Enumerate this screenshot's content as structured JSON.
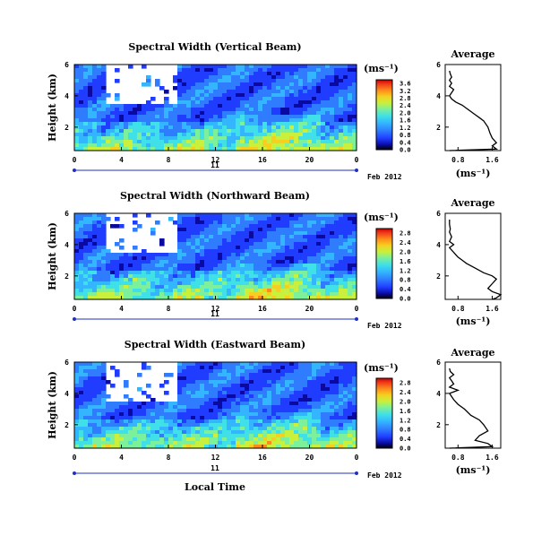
{
  "figure": {
    "xlabel": "Local Time",
    "date_label": "Feb 2012",
    "day_label": "11"
  },
  "chart_data": [
    {
      "type": "heatmap",
      "title": "Spectral Width (Vertical Beam)",
      "xlabel": "Local Time",
      "ylabel": "Height (km)",
      "x_ticks": [
        "0",
        "4",
        "8",
        "12",
        "16",
        "20",
        "0"
      ],
      "x_range": [
        0,
        24
      ],
      "y_ticks": [
        "2",
        "4",
        "6"
      ],
      "y_range": [
        0.5,
        6
      ],
      "colorbar": {
        "label": "(ms⁻¹)",
        "ticks": [
          "0.0",
          "0.4",
          "0.8",
          "1.2",
          "1.6",
          "2.0",
          "2.4",
          "2.8",
          "3.2",
          "3.6"
        ],
        "range": [
          0,
          3.8
        ]
      },
      "profile": {
        "title": "Average",
        "xlabel": "(ms⁻¹)",
        "x_ticks": [
          "0.8",
          "1.6"
        ],
        "x_range": [
          0.5,
          1.8
        ],
        "y_ticks": [
          "2",
          "4",
          "6"
        ],
        "y_range": [
          0.5,
          6
        ],
        "heights": [
          0.5,
          0.6,
          0.8,
          1.0,
          1.3,
          1.6,
          2.0,
          2.4,
          2.6,
          2.8,
          3.0,
          3.2,
          3.4,
          3.6,
          3.8,
          4.0,
          4.2,
          4.4,
          4.6,
          4.8,
          5.0,
          5.2,
          5.4,
          5.6
        ],
        "values": [
          0.6,
          1.7,
          1.6,
          1.7,
          1.6,
          1.55,
          1.5,
          1.4,
          1.3,
          1.2,
          1.1,
          1.0,
          0.9,
          0.75,
          0.65,
          0.6,
          0.65,
          0.7,
          0.6,
          0.65,
          0.6,
          0.65,
          0.62,
          0.6
        ]
      }
    },
    {
      "type": "heatmap",
      "title": "Spectral Width (Northward Beam)",
      "xlabel": "Local Time",
      "ylabel": "Height (km)",
      "x_ticks": [
        "0",
        "4",
        "8",
        "12",
        "16",
        "20",
        "0"
      ],
      "x_range": [
        0,
        24
      ],
      "y_ticks": [
        "2",
        "4",
        "6"
      ],
      "y_range": [
        0.5,
        6
      ],
      "colorbar": {
        "label": "(ms⁻¹)",
        "ticks": [
          "0.0",
          "0.4",
          "0.8",
          "1.2",
          "1.6",
          "2.0",
          "2.4",
          "2.8"
        ],
        "range": [
          0,
          3.0
        ]
      },
      "profile": {
        "title": "Average",
        "xlabel": "(ms⁻¹)",
        "x_ticks": [
          "0.8",
          "1.6"
        ],
        "x_range": [
          0.5,
          1.8
        ],
        "y_ticks": [
          "2",
          "4",
          "6"
        ],
        "y_range": [
          0.5,
          6
        ],
        "heights": [
          0.5,
          0.6,
          0.8,
          1.0,
          1.2,
          1.5,
          1.8,
          2.0,
          2.2,
          2.5,
          2.8,
          3.0,
          3.2,
          3.5,
          3.8,
          4.0,
          4.2,
          4.5,
          4.8,
          5.0,
          5.3,
          5.6
        ],
        "values": [
          1.6,
          1.7,
          1.8,
          1.6,
          1.5,
          1.6,
          1.7,
          1.6,
          1.4,
          1.2,
          1.0,
          0.9,
          0.8,
          0.7,
          0.6,
          0.7,
          0.6,
          0.65,
          0.6,
          0.62,
          0.6,
          0.6
        ]
      }
    },
    {
      "type": "heatmap",
      "title": "Spectral Width (Eastward Beam)",
      "xlabel": "Local Time",
      "ylabel": "Height (km)",
      "x_ticks": [
        "0",
        "4",
        "8",
        "12",
        "16",
        "20",
        "0"
      ],
      "x_range": [
        0,
        24
      ],
      "y_ticks": [
        "2",
        "4",
        "6"
      ],
      "y_range": [
        0.5,
        6
      ],
      "colorbar": {
        "label": "(ms⁻¹)",
        "ticks": [
          "0.0",
          "0.4",
          "0.8",
          "1.2",
          "1.6",
          "2.0",
          "2.4",
          "2.8"
        ],
        "range": [
          0,
          3.0
        ]
      },
      "profile": {
        "title": "Average",
        "xlabel": "(ms⁻¹)",
        "x_ticks": [
          "0.8",
          "1.6"
        ],
        "x_range": [
          0.5,
          1.8
        ],
        "y_ticks": [
          "2",
          "4",
          "6"
        ],
        "y_range": [
          0.5,
          6
        ],
        "heights": [
          0.5,
          0.6,
          0.8,
          1.0,
          1.3,
          1.6,
          2.0,
          2.3,
          2.6,
          3.0,
          3.3,
          3.6,
          4.0,
          4.2,
          4.4,
          4.6,
          4.8,
          5.0,
          5.2,
          5.4,
          5.6
        ],
        "values": [
          0.6,
          1.6,
          1.5,
          1.2,
          1.3,
          1.5,
          1.4,
          1.3,
          1.1,
          0.95,
          0.8,
          0.7,
          0.6,
          0.8,
          0.6,
          0.7,
          0.65,
          0.6,
          0.7,
          0.62,
          0.6
        ]
      }
    }
  ],
  "palette": [
    "#000000",
    "#0a0aa0",
    "#1f3cff",
    "#2f7cff",
    "#33b5ff",
    "#40e0e8",
    "#7cf09a",
    "#c8f03c",
    "#f5d020",
    "#ff8c1a",
    "#f03a1a",
    "#c80000"
  ]
}
